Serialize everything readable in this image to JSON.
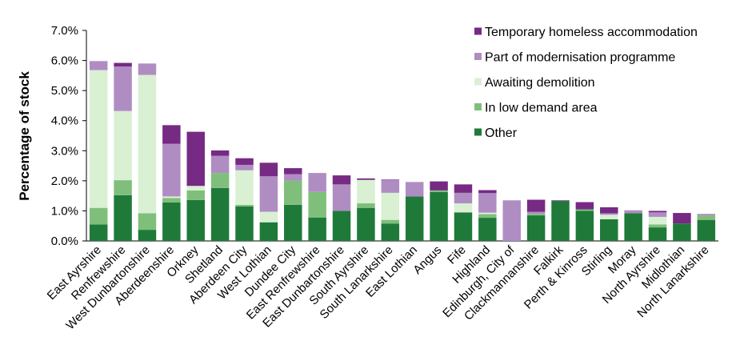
{
  "chart_data": {
    "type": "bar",
    "stacked": true,
    "title": "",
    "xlabel": "",
    "ylabel": "Percentage of stock",
    "ylim": [
      0,
      7
    ],
    "yticks": [
      0,
      1,
      2,
      3,
      4,
      5,
      6,
      7
    ],
    "ytick_labels": [
      "0.0%",
      "1.0%",
      "2.0%",
      "3.0%",
      "4.0%",
      "5.0%",
      "6.0%",
      "7.0%"
    ],
    "legend_position": "top-right",
    "categories": [
      "East Ayrshire",
      "Renfrewshire",
      "West Dunbartonshire",
      "Aberdeenshire",
      "Orkney",
      "Shetland",
      "Aberdeen City",
      "West Lothian",
      "Dundee City",
      "East Renfrewshire",
      "East Dunbartonshire",
      "South Ayrshire",
      "South Lanarkshire",
      "East Lothian",
      "Angus",
      "Fife",
      "Highland",
      "Edinburgh, City of",
      "Clackmannanshire",
      "Falkirk",
      "Perth & Kinross",
      "Stirling",
      "Moray",
      "North Ayrshire",
      "Midlothian",
      "North Lanarkshire"
    ],
    "series": [
      {
        "name": "Other",
        "color": "#1f7a3a",
        "values": [
          0.55,
          1.52,
          0.37,
          1.28,
          1.36,
          1.76,
          1.15,
          0.62,
          1.2,
          0.78,
          1.0,
          1.1,
          0.58,
          1.48,
          1.63,
          0.95,
          0.77,
          0.0,
          0.85,
          1.33,
          1.0,
          0.72,
          0.92,
          0.45,
          0.58,
          0.7
        ]
      },
      {
        "name": "In low demand area",
        "color": "#7fbf7b",
        "values": [
          0.55,
          0.5,
          0.55,
          0.15,
          0.32,
          0.5,
          0.05,
          0.0,
          0.8,
          0.85,
          0.0,
          0.15,
          0.12,
          0.0,
          0.05,
          0.0,
          0.12,
          0.0,
          0.05,
          0.0,
          0.05,
          0.0,
          0.0,
          0.1,
          0.0,
          0.15
        ]
      },
      {
        "name": "Awaiting demolition",
        "color": "#d9f0d3",
        "values": [
          4.58,
          2.3,
          4.6,
          0.05,
          0.15,
          0.0,
          1.15,
          0.35,
          0.0,
          0.0,
          0.0,
          0.78,
          0.9,
          0.0,
          0.0,
          0.3,
          0.05,
          0.0,
          0.0,
          0.0,
          0.0,
          0.15,
          0.0,
          0.25,
          0.0,
          0.0
        ]
      },
      {
        "name": "Part of modernisation programme",
        "color": "#af8dc3",
        "values": [
          0.3,
          1.48,
          0.38,
          1.75,
          0.0,
          0.57,
          0.18,
          1.18,
          0.22,
          0.63,
          0.88,
          0.0,
          0.42,
          0.48,
          0.0,
          0.35,
          0.65,
          1.35,
          0.07,
          0.0,
          0.0,
          0.05,
          0.1,
          0.15,
          0.0,
          0.05
        ]
      },
      {
        "name": "Temporary homeless accommodation",
        "color": "#762a83",
        "values": [
          0.0,
          0.12,
          0.0,
          0.62,
          1.8,
          0.18,
          0.22,
          0.45,
          0.2,
          0.0,
          0.3,
          0.05,
          0.02,
          0.0,
          0.3,
          0.28,
          0.1,
          0.0,
          0.4,
          0.02,
          0.24,
          0.2,
          0.0,
          0.05,
          0.35,
          0.0
        ]
      }
    ]
  }
}
